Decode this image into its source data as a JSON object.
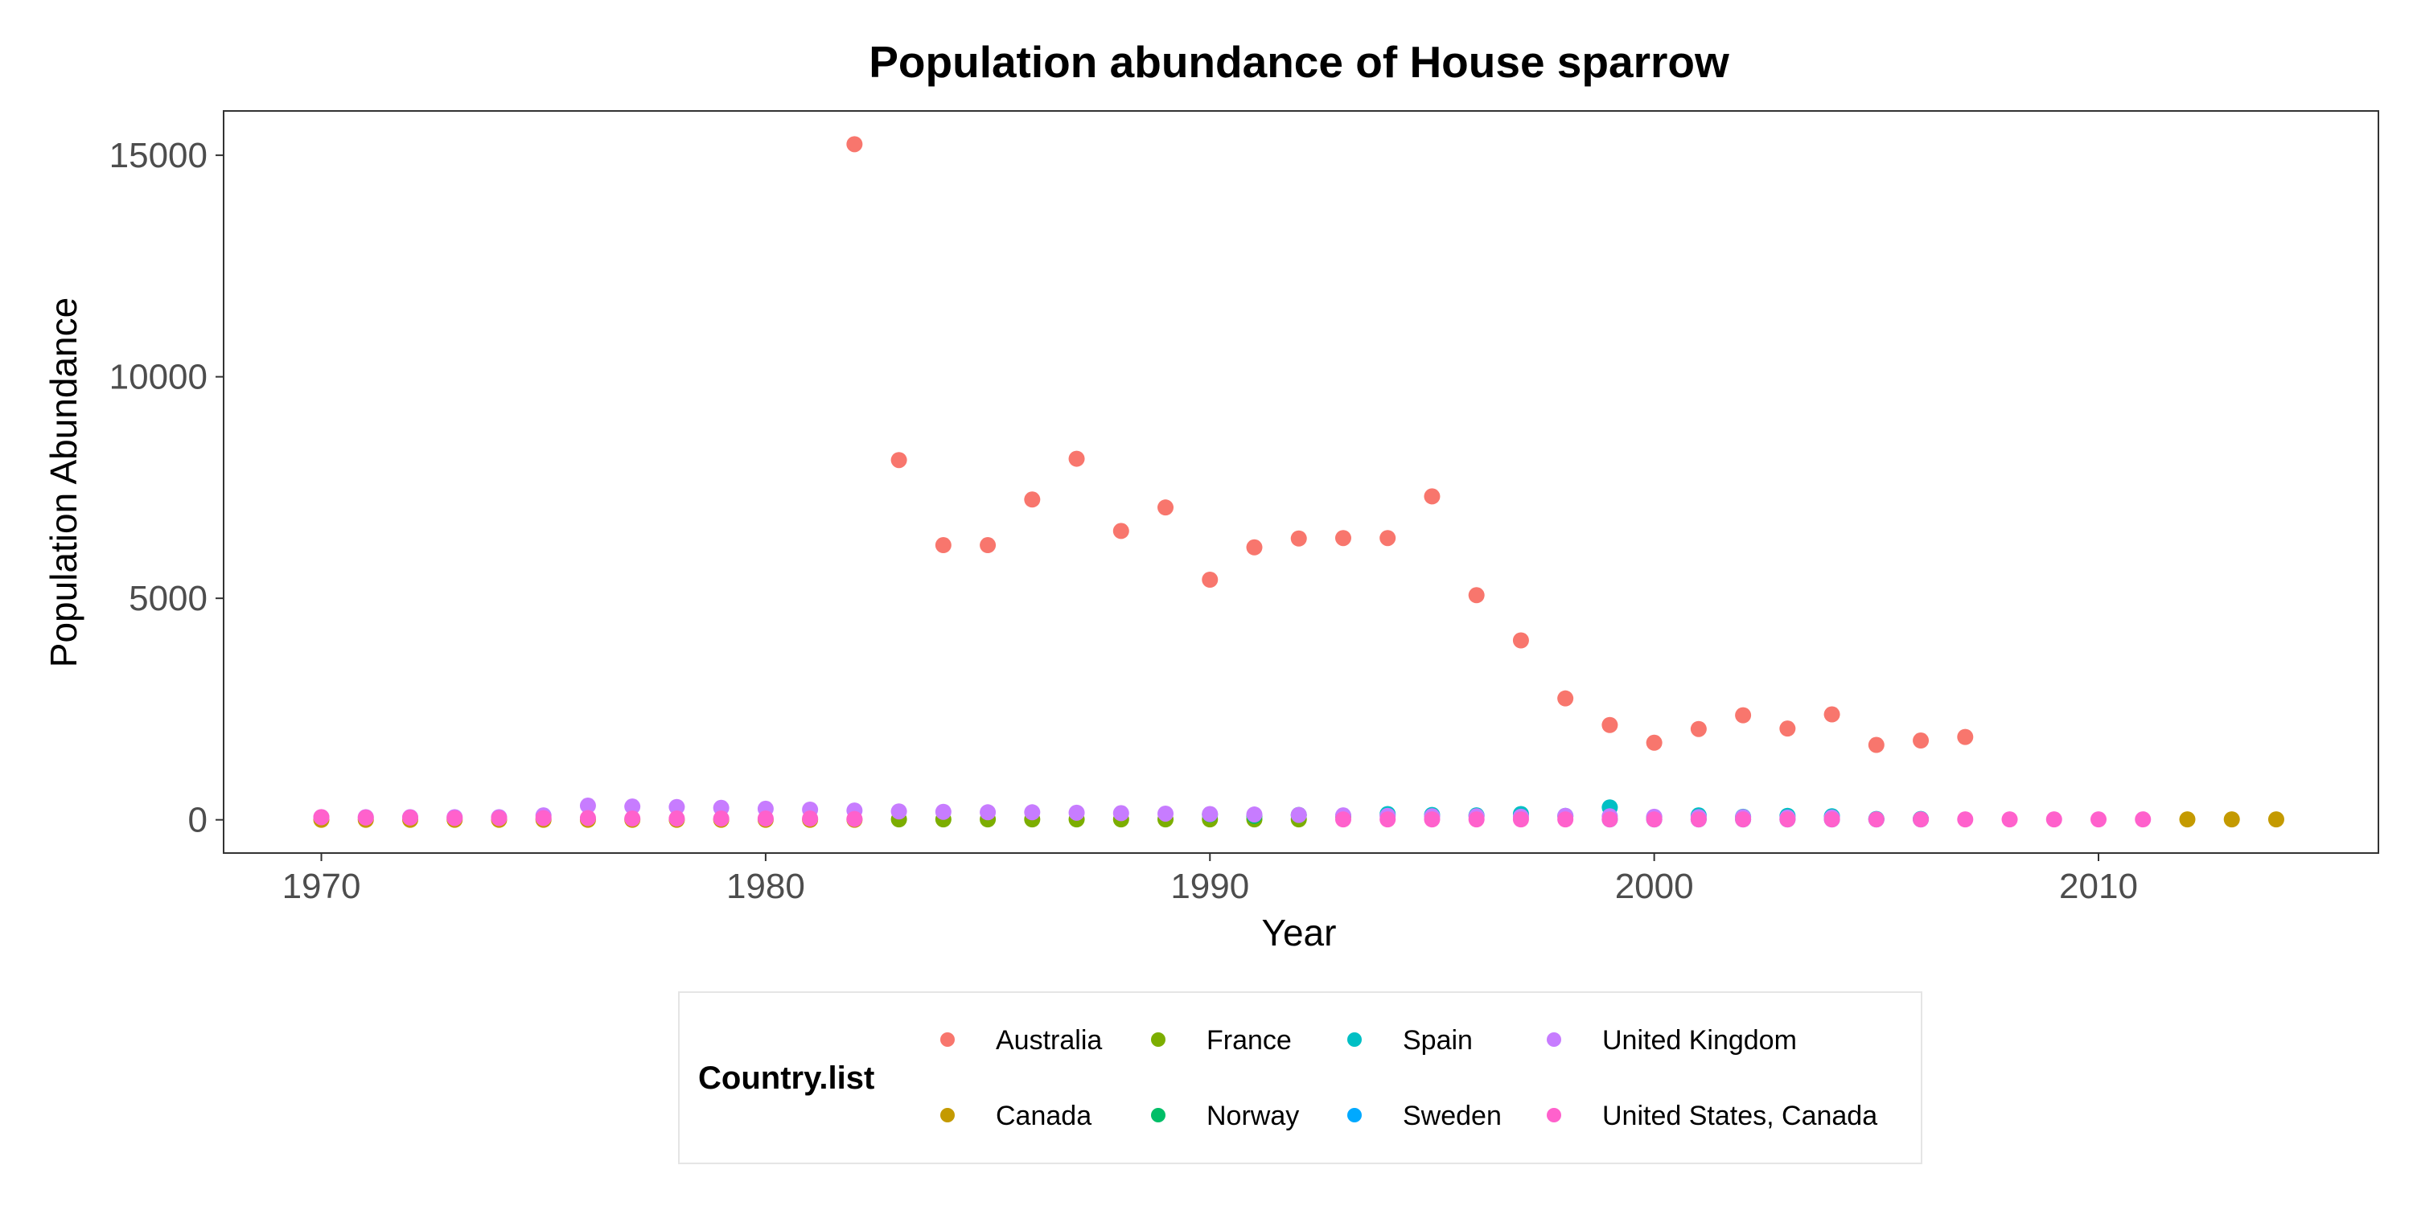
{
  "chart_data": {
    "type": "scatter",
    "title": "Population abundance of House sparrow",
    "xlabel": "Year",
    "ylabel": "Population Abundance",
    "xlim": [
      1967.8,
      2016.3
    ],
    "ylim": [
      -750,
      16000
    ],
    "x_ticks": [
      1970,
      1980,
      1990,
      2000,
      2010
    ],
    "y_ticks": [
      0,
      5000,
      10000,
      15000
    ],
    "grid": false,
    "legend": {
      "title": "Country.list",
      "position": "bottom",
      "columns": 4,
      "rows": 2
    },
    "series": [
      {
        "name": "Australia",
        "color": "#F8766D",
        "points": [
          [
            1982,
            15250
          ],
          [
            1983,
            8120
          ],
          [
            1984,
            6200
          ],
          [
            1985,
            6200
          ],
          [
            1986,
            7230
          ],
          [
            1987,
            8150
          ],
          [
            1988,
            6520
          ],
          [
            1989,
            7050
          ],
          [
            1990,
            5420
          ],
          [
            1991,
            6150
          ],
          [
            1992,
            6350
          ],
          [
            1993,
            6360
          ],
          [
            1994,
            6360
          ],
          [
            1995,
            7300
          ],
          [
            1996,
            5070
          ],
          [
            1997,
            4050
          ],
          [
            1998,
            2740
          ],
          [
            1999,
            2140
          ],
          [
            2000,
            1740
          ],
          [
            2001,
            2050
          ],
          [
            2002,
            2360
          ],
          [
            2003,
            2060
          ],
          [
            2004,
            2380
          ],
          [
            2005,
            1690
          ],
          [
            2006,
            1790
          ],
          [
            2007,
            1870
          ]
        ]
      },
      {
        "name": "Canada",
        "color": "#C49A00",
        "points": [
          [
            1970,
            0
          ],
          [
            1971,
            0
          ],
          [
            1972,
            0
          ],
          [
            1973,
            0
          ],
          [
            1974,
            0
          ],
          [
            1975,
            0
          ],
          [
            1976,
            0
          ],
          [
            1977,
            0
          ],
          [
            1978,
            0
          ],
          [
            1979,
            0
          ],
          [
            1980,
            0
          ],
          [
            1981,
            0
          ],
          [
            1982,
            0
          ],
          [
            2012,
            10
          ],
          [
            2013,
            10
          ],
          [
            2014,
            10
          ]
        ]
      },
      {
        "name": "France",
        "color": "#7CAE00",
        "points": [
          [
            1983,
            10
          ],
          [
            1984,
            10
          ],
          [
            1985,
            10
          ],
          [
            1986,
            10
          ],
          [
            1987,
            10
          ],
          [
            1988,
            10
          ],
          [
            1989,
            10
          ],
          [
            1990,
            10
          ],
          [
            1991,
            10
          ],
          [
            1992,
            10
          ]
        ]
      },
      {
        "name": "Norway",
        "color": "#00BE67",
        "points": [
          [
            1990,
            120
          ],
          [
            1991,
            90
          ],
          [
            1992,
            110
          ],
          [
            1993,
            80
          ]
        ]
      },
      {
        "name": "Spain",
        "color": "#00BFC4",
        "points": [
          [
            1994,
            130
          ],
          [
            1995,
            110
          ],
          [
            1996,
            100
          ],
          [
            1997,
            130
          ],
          [
            1998,
            90
          ],
          [
            1999,
            280
          ],
          [
            2000,
            60
          ],
          [
            2001,
            100
          ],
          [
            2002,
            70
          ],
          [
            2003,
            90
          ],
          [
            2004,
            80
          ],
          [
            2005,
            20
          ],
          [
            2006,
            20
          ]
        ]
      },
      {
        "name": "Sweden",
        "color": "#00A9FF",
        "points": [
          [
            1999,
            10
          ],
          [
            2000,
            10
          ],
          [
            2001,
            10
          ],
          [
            2002,
            10
          ],
          [
            2003,
            10
          ],
          [
            2004,
            10
          ],
          [
            2005,
            10
          ],
          [
            2006,
            10
          ]
        ]
      },
      {
        "name": "United Kingdom",
        "color": "#C77CFF",
        "points": [
          [
            1970,
            60
          ],
          [
            1971,
            60
          ],
          [
            1972,
            60
          ],
          [
            1973,
            60
          ],
          [
            1974,
            60
          ],
          [
            1975,
            100
          ],
          [
            1976,
            320
          ],
          [
            1977,
            300
          ],
          [
            1978,
            290
          ],
          [
            1979,
            270
          ],
          [
            1980,
            250
          ],
          [
            1981,
            230
          ],
          [
            1982,
            210
          ],
          [
            1983,
            190
          ],
          [
            1984,
            180
          ],
          [
            1985,
            170
          ],
          [
            1986,
            170
          ],
          [
            1987,
            160
          ],
          [
            1988,
            150
          ],
          [
            1989,
            140
          ],
          [
            1990,
            130
          ],
          [
            1991,
            120
          ],
          [
            1992,
            110
          ],
          [
            1993,
            100
          ],
          [
            1994,
            90
          ],
          [
            1995,
            80
          ],
          [
            1996,
            80
          ],
          [
            1997,
            70
          ],
          [
            1998,
            90
          ],
          [
            1999,
            80
          ],
          [
            2000,
            70
          ],
          [
            2001,
            60
          ],
          [
            2002,
            60
          ],
          [
            2003,
            50
          ],
          [
            2004,
            50
          ]
        ]
      },
      {
        "name": "United States, Canada",
        "color": "#FF61CC",
        "points": [
          [
            1970,
            60
          ],
          [
            1971,
            50
          ],
          [
            1972,
            50
          ],
          [
            1973,
            40
          ],
          [
            1974,
            40
          ],
          [
            1975,
            40
          ],
          [
            1976,
            40
          ],
          [
            1977,
            30
          ],
          [
            1978,
            30
          ],
          [
            1979,
            30
          ],
          [
            1980,
            30
          ],
          [
            1981,
            30
          ],
          [
            1982,
            20
          ],
          [
            1993,
            10
          ],
          [
            1994,
            10
          ],
          [
            1995,
            10
          ],
          [
            1996,
            10
          ],
          [
            1997,
            10
          ],
          [
            1998,
            10
          ],
          [
            1999,
            10
          ],
          [
            2000,
            10
          ],
          [
            2001,
            10
          ],
          [
            2002,
            10
          ],
          [
            2003,
            10
          ],
          [
            2004,
            10
          ],
          [
            2005,
            10
          ],
          [
            2006,
            10
          ],
          [
            2007,
            10
          ],
          [
            2008,
            10
          ],
          [
            2009,
            10
          ],
          [
            2010,
            10
          ],
          [
            2011,
            10
          ]
        ]
      }
    ]
  }
}
